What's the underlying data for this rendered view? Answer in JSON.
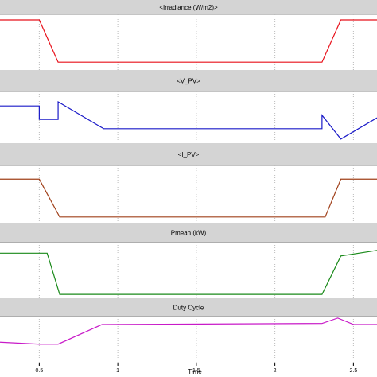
{
  "chart_data": [
    {
      "type": "line",
      "title": "<Irradiance (W/m2)>",
      "color": "#e8101a",
      "x": [
        0.25,
        0.5,
        0.62,
        2.3,
        2.42,
        2.65
      ],
      "values": [
        0.9,
        0.9,
        0.14,
        0.14,
        0.9,
        0.9
      ],
      "xlim": [
        0.25,
        2.65
      ],
      "ylim": [
        0,
        1
      ],
      "xticks": [
        0.5,
        1,
        1.5,
        2,
        2.5
      ],
      "grid": true
    },
    {
      "type": "line",
      "title": "<V_PV>",
      "color": "#1a1ac8",
      "x": [
        0.25,
        0.5,
        0.5,
        0.62,
        0.62,
        0.91,
        2.3,
        2.3,
        2.42,
        2.65
      ],
      "values": [
        0.72,
        0.72,
        0.46,
        0.46,
        0.8,
        0.28,
        0.28,
        0.54,
        0.08,
        0.49
      ],
      "xlim": [
        0.25,
        2.65
      ],
      "ylim": [
        0,
        1
      ],
      "xticks": [
        0.5,
        1,
        1.5,
        2,
        2.5
      ],
      "grid": true
    },
    {
      "type": "line",
      "title": "<I_PV>",
      "color": "#a0401a",
      "x": [
        0.25,
        0.5,
        0.63,
        2.32,
        2.42,
        2.65
      ],
      "values": [
        0.76,
        0.76,
        0.1,
        0.1,
        0.76,
        0.76
      ],
      "xlim": [
        0.25,
        2.65
      ],
      "ylim": [
        0,
        1
      ],
      "xticks": [
        0.5,
        1,
        1.5,
        2,
        2.5
      ],
      "grid": true
    },
    {
      "type": "line",
      "title": "Pmean (kW)",
      "color": "#1a8a1a",
      "x": [
        0.25,
        0.55,
        0.63,
        2.3,
        2.42,
        2.65
      ],
      "values": [
        0.81,
        0.81,
        0.07,
        0.07,
        0.76,
        0.86
      ],
      "xlim": [
        0.25,
        2.65
      ],
      "ylim": [
        0,
        1
      ],
      "xticks": [
        0.5,
        1,
        1.5,
        2,
        2.5
      ],
      "grid": true
    },
    {
      "type": "line",
      "title": "Duty Cycle",
      "color": "#c81ac8",
      "x": [
        0.25,
        0.5,
        0.62,
        0.9,
        2.3,
        2.4,
        2.5,
        2.65
      ],
      "values": [
        0.48,
        0.44,
        0.44,
        0.84,
        0.86,
        0.97,
        0.84,
        0.84
      ],
      "xlim": [
        0.25,
        2.65
      ],
      "ylim": [
        0,
        1
      ],
      "xticks": [
        0.5,
        1,
        1.5,
        2,
        2.5
      ],
      "grid": true,
      "xlabel": "Time"
    }
  ]
}
